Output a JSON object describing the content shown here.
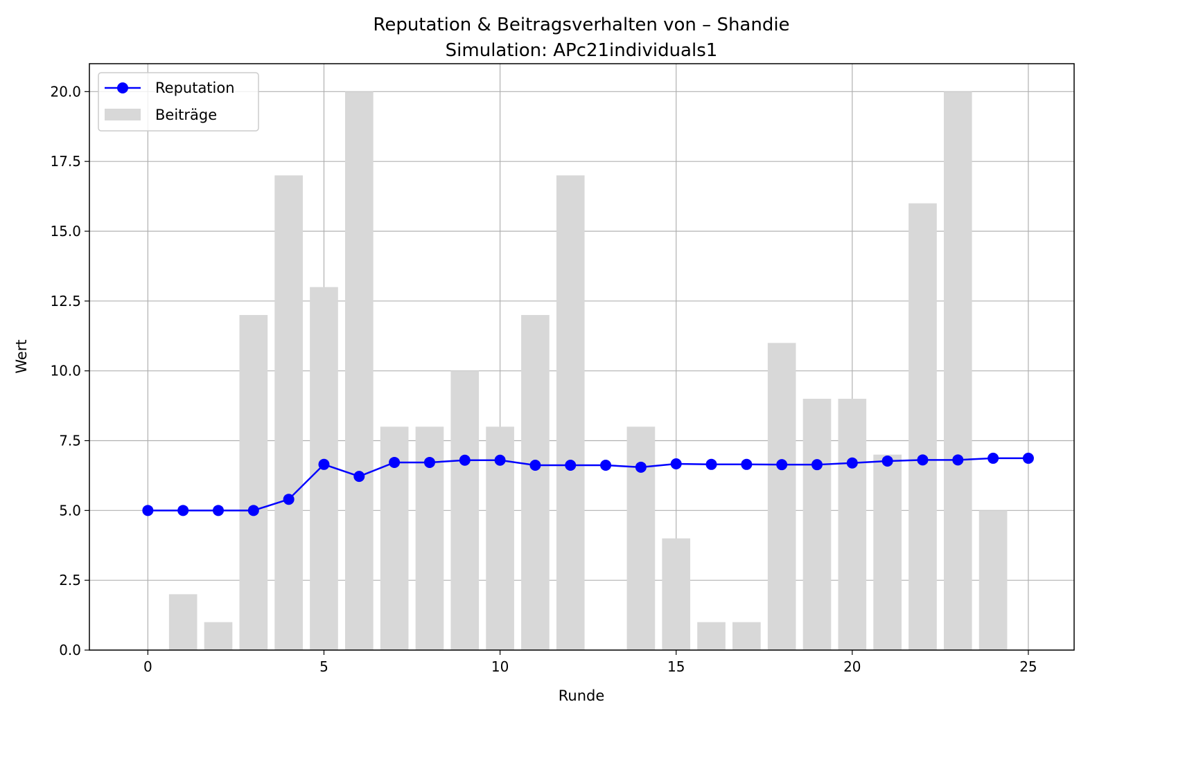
{
  "chart_data": {
    "type": "bar",
    "title": "Reputation & Beitragsverhalten von – Shandie",
    "subtitle": "Simulation: APc21individuals1",
    "xlabel": "Runde",
    "ylabel": "Wert",
    "xlim": [
      -1.66,
      26.3
    ],
    "ylim": [
      0,
      21
    ],
    "xticks": [
      0,
      5,
      10,
      15,
      20,
      25
    ],
    "yticks": [
      0.0,
      2.5,
      5.0,
      7.5,
      10.0,
      12.5,
      15.0,
      17.5,
      20.0
    ],
    "grid": true,
    "legend_position": "upper left",
    "x": [
      0,
      1,
      2,
      3,
      4,
      5,
      6,
      7,
      8,
      9,
      10,
      11,
      12,
      13,
      14,
      15,
      16,
      17,
      18,
      19,
      20,
      21,
      22,
      23,
      24,
      25
    ],
    "series": [
      {
        "name": "Reputation",
        "kind": "line",
        "marker": "circle",
        "color": "#0000ff",
        "values": [
          5.0,
          5.0,
          5.0,
          5.0,
          5.4,
          6.65,
          6.22,
          6.72,
          6.72,
          6.8,
          6.8,
          6.62,
          6.62,
          6.62,
          6.55,
          6.67,
          6.65,
          6.65,
          6.64,
          6.64,
          6.7,
          6.77,
          6.81,
          6.81,
          6.87,
          6.87
        ]
      },
      {
        "name": "Beiträge",
        "kind": "bar",
        "color": "#d8d8d8",
        "values": [
          0,
          2,
          1,
          12,
          17,
          13,
          20,
          8,
          8,
          10,
          8,
          12,
          17,
          0,
          8,
          4,
          1,
          1,
          11,
          9,
          9,
          7,
          16,
          20,
          5,
          null
        ]
      }
    ]
  }
}
